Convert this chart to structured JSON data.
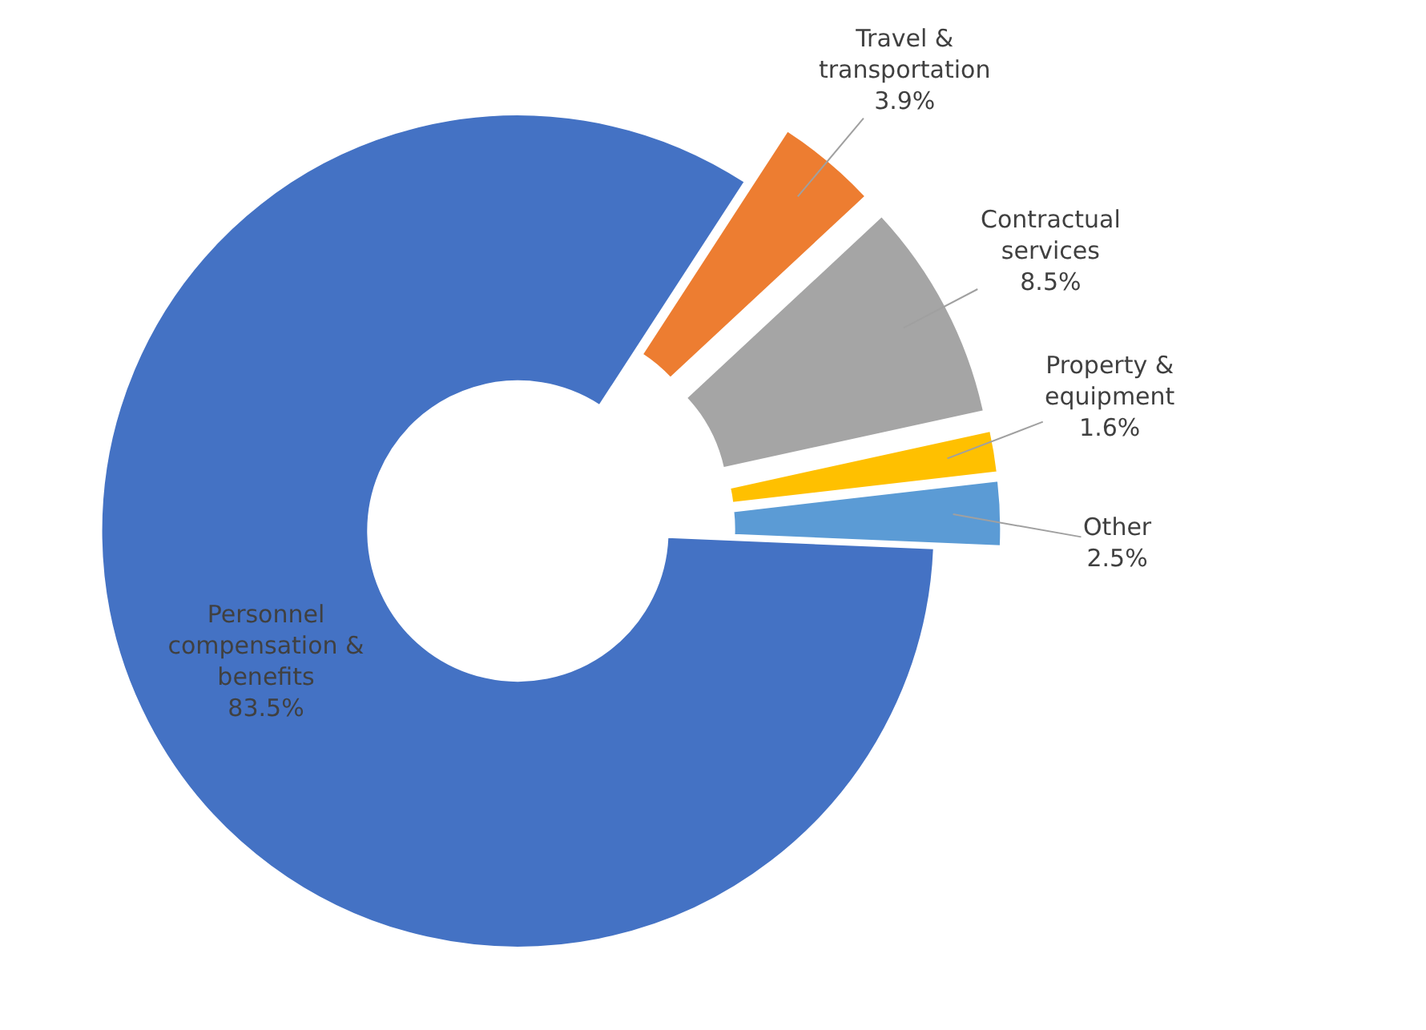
{
  "chart_data": {
    "type": "donut",
    "categories": [
      "Travel & transportation",
      "Contractual services",
      "Property & equipment",
      "Other",
      "Personnel compensation & benefits"
    ],
    "values": [
      3.9,
      8.5,
      1.6,
      2.5,
      83.5
    ],
    "value_labels": [
      "3.9%",
      "8.5%",
      "1.6%",
      "2.5%",
      "83.5%"
    ],
    "colors": [
      "#ed7d31",
      "#a5a5a5",
      "#ffc000",
      "#5b9bd5",
      "#4472c4"
    ],
    "legend": false
  }
}
